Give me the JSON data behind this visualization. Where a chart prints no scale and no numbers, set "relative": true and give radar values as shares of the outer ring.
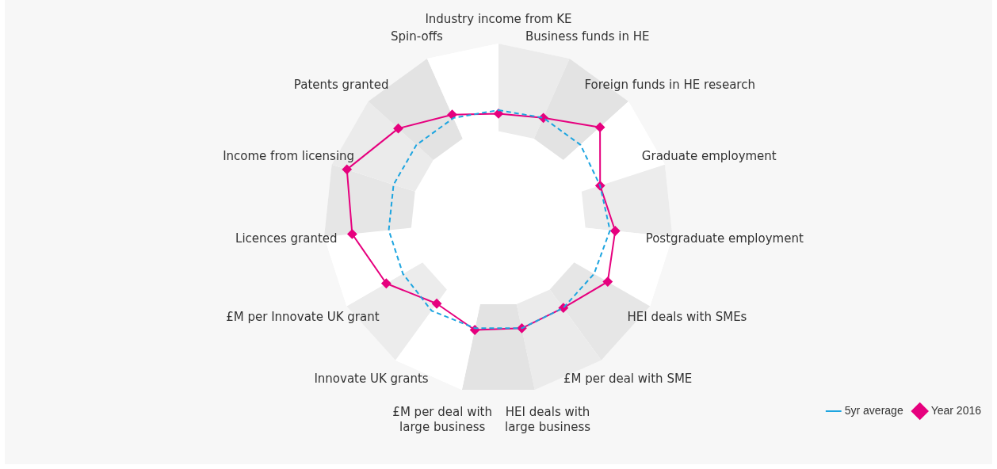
{
  "chart_data": {
    "type": "radar",
    "relative": true,
    "legend": "bottom right",
    "grid": false,
    "categories": [
      "Industry income from KE",
      "Business funds in HE",
      "Foreign funds in HE research",
      "Graduate employment",
      "Postgraduate employment",
      "HEI deals with SMEs",
      "£M per deal with SME",
      "HEI deals with large business",
      "£M per deal with large business",
      "Innovate UK grants",
      "£M per Innovate UK grant",
      "Licences granted",
      "Income from licensing",
      "Patents granted",
      "Spin-offs"
    ],
    "series": [
      {
        "name": "5yr average",
        "color": "#1ea5e0",
        "line_style": "dashed",
        "marker": "none",
        "values": [
          0.62,
          0.63,
          0.63,
          0.61,
          0.64,
          0.63,
          0.63,
          0.64,
          0.64,
          0.65,
          0.63,
          0.63,
          0.63,
          0.63,
          0.63
        ]
      },
      {
        "name": "Year 2016",
        "color": "#e6007e",
        "line_style": "solid",
        "marker": "diamond",
        "values": [
          0.6,
          0.63,
          0.78,
          0.61,
          0.67,
          0.72,
          0.63,
          0.64,
          0.65,
          0.6,
          0.74,
          0.84,
          0.91,
          0.77,
          0.65
        ]
      }
    ]
  }
}
